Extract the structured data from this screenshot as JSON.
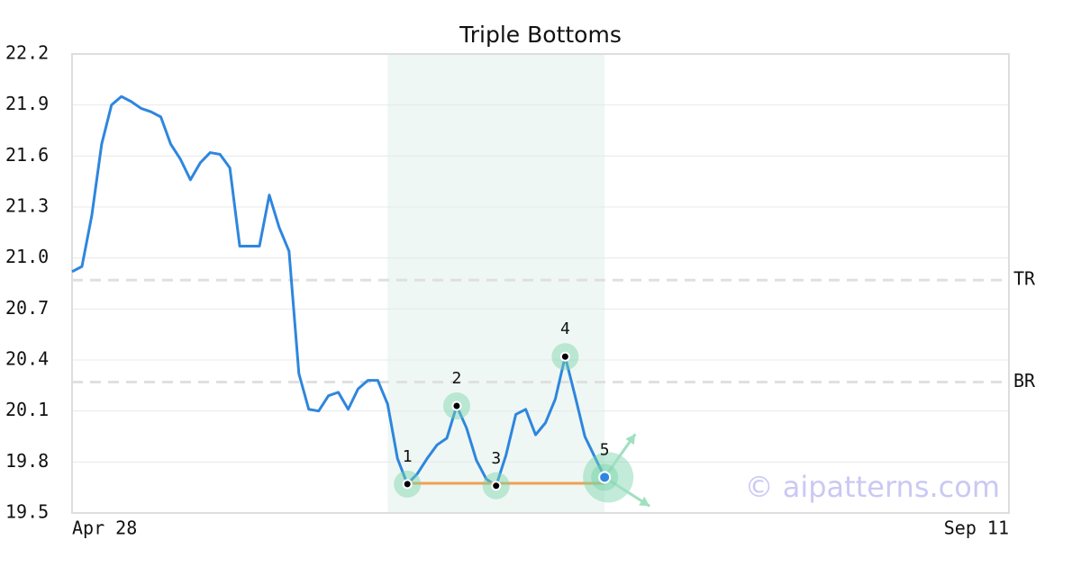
{
  "chart_data": {
    "type": "line",
    "title": "Triple Bottoms",
    "x": [
      0,
      1,
      2,
      3,
      4,
      5,
      6,
      7,
      8,
      9,
      10,
      11,
      12,
      13,
      14,
      15,
      16,
      17,
      18,
      19,
      20,
      21,
      22,
      23,
      24,
      25,
      26,
      27,
      28,
      29,
      30,
      31,
      32,
      33,
      34,
      35,
      36,
      37,
      38,
      39,
      40,
      41,
      42,
      43,
      44,
      45,
      46,
      47,
      48,
      49,
      50,
      51,
      52,
      53,
      54
    ],
    "series": [
      {
        "color": "#2e86de",
        "values": [
          20.92,
          20.95,
          21.25,
          21.67,
          21.9,
          21.95,
          21.92,
          21.88,
          21.86,
          21.83,
          21.67,
          21.58,
          21.46,
          21.56,
          21.62,
          21.61,
          21.53,
          21.07,
          21.07,
          21.07,
          21.37,
          21.18,
          21.04,
          20.32,
          20.11,
          20.1,
          20.19,
          20.21,
          20.11,
          20.23,
          20.28,
          20.28,
          20.14,
          19.82,
          19.67,
          19.73,
          19.82,
          19.9,
          19.94,
          20.13,
          20.0,
          19.81,
          19.7,
          19.66,
          19.84,
          20.08,
          20.11,
          19.96,
          20.03,
          20.17,
          20.42,
          20.19,
          19.95,
          19.83,
          19.71
        ]
      }
    ],
    "xlim": [
      0,
      95
    ],
    "xticks": [
      {
        "value": 0,
        "label": "Apr 28"
      },
      {
        "value": 95,
        "label": "Sep 11"
      }
    ],
    "ylim": [
      19.5,
      22.2
    ],
    "yticks": [
      19.5,
      19.8,
      20.1,
      20.4,
      20.7,
      {
        "value": 21,
        "label": "21.0"
      },
      21.3,
      21.6,
      21.9,
      22.2
    ],
    "grid": true,
    "highlight": [
      32,
      54
    ],
    "levels": [
      {
        "label": "TR",
        "value": 20.87
      },
      {
        "label": "BR",
        "value": 20.27
      }
    ],
    "support_line": {
      "y": 19.675,
      "x": [
        34,
        54
      ],
      "color": "#f0a050"
    },
    "pattern_points": [
      {
        "label": "1",
        "x": 34,
        "y": 19.67
      },
      {
        "label": "2",
        "x": 39,
        "y": 20.13
      },
      {
        "label": "3",
        "x": 43,
        "y": 19.66
      },
      {
        "label": "4",
        "x": 50,
        "y": 20.42
      },
      {
        "label": "5",
        "x": 54,
        "y": 19.71
      }
    ],
    "watermark": "© aipatterns.com"
  }
}
